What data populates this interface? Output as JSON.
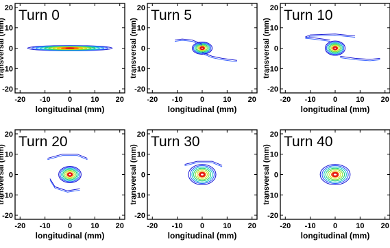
{
  "chart_data": [
    {
      "type": "contour",
      "title": "Turn 0",
      "xlabel": "longitudinal (mm)",
      "ylabel": "transversal (mm)",
      "xlim": [
        -22,
        22
      ],
      "ylim": [
        -22,
        22
      ],
      "x_ticks": [
        -20,
        -10,
        0,
        10,
        20
      ],
      "y_ticks": [
        20,
        10,
        0,
        -10,
        -20
      ],
      "x_tick_labels": [
        "-20",
        "-10",
        "0",
        "10",
        "20"
      ],
      "y_tick_labels": [
        "20",
        "10",
        "0",
        "-10",
        "-20"
      ],
      "grid": false,
      "shape": "ellipse",
      "center": [
        0,
        0
      ],
      "core_semi_axes": [
        17,
        1.3
      ],
      "levels": 10,
      "arms": []
    },
    {
      "type": "contour",
      "title": "Turn 5",
      "xlabel": "longitudinal (mm)",
      "ylabel": "transversal (mm)",
      "xlim": [
        -22,
        22
      ],
      "ylim": [
        -22,
        22
      ],
      "x_ticks": [
        -20,
        -10,
        0,
        10,
        20
      ],
      "y_ticks": [
        20,
        10,
        0,
        -10,
        -20
      ],
      "x_tick_labels": [
        "-20",
        "-10",
        "0",
        "10",
        "20"
      ],
      "y_tick_labels": [
        "20",
        "10",
        "0",
        "-10",
        "-20"
      ],
      "grid": false,
      "shape": "spiral",
      "center": [
        0,
        0
      ],
      "core_semi_axes": [
        4,
        3
      ],
      "levels": 8,
      "arms": [
        [
          [
            0,
            2
          ],
          [
            -4,
            4
          ],
          [
            -8,
            4.5
          ],
          [
            -11,
            4
          ]
        ],
        [
          [
            0,
            -2
          ],
          [
            4,
            -4
          ],
          [
            8,
            -5
          ],
          [
            14,
            -6
          ]
        ]
      ]
    },
    {
      "type": "contour",
      "title": "Turn 10",
      "xlabel": "longitudinal (mm)",
      "ylabel": "transversal (mm)",
      "xlim": [
        -22,
        22
      ],
      "ylim": [
        -22,
        22
      ],
      "x_ticks": [
        -20,
        -10,
        0,
        10,
        20
      ],
      "y_ticks": [
        20,
        10,
        0,
        -10,
        -20
      ],
      "x_tick_labels": [
        "-20",
        "-10",
        "0",
        "10",
        "20"
      ],
      "y_tick_labels": [
        "20",
        "10",
        "0",
        "-10",
        "-20"
      ],
      "grid": false,
      "shape": "spiral",
      "center": [
        0,
        0
      ],
      "core_semi_axes": [
        4,
        3.5
      ],
      "levels": 8,
      "arms": [
        [
          [
            -2,
            4
          ],
          [
            -8,
            5
          ],
          [
            -12,
            5.5
          ],
          [
            -10,
            6.5
          ],
          [
            0,
            7
          ],
          [
            8,
            6
          ]
        ],
        [
          [
            2,
            -4
          ],
          [
            8,
            -5
          ],
          [
            14,
            -5.5
          ],
          [
            18,
            -5
          ]
        ]
      ]
    },
    {
      "type": "contour",
      "title": "Turn 20",
      "xlabel": "longitudinal (mm)",
      "ylabel": "transversal (mm)",
      "xlim": [
        -22,
        22
      ],
      "ylim": [
        -22,
        22
      ],
      "x_ticks": [
        -20,
        -10,
        0,
        10,
        20
      ],
      "y_ticks": [
        20,
        10,
        0,
        -10,
        -20
      ],
      "x_tick_labels": [
        "-20",
        "-10",
        "0",
        "10",
        "20"
      ],
      "y_tick_labels": [
        "20",
        "10",
        "0",
        "-10",
        "-20"
      ],
      "grid": false,
      "shape": "core-with-rings",
      "center": [
        0,
        0
      ],
      "core_semi_axes": [
        4.5,
        4
      ],
      "levels": 8,
      "arms": [
        [
          [
            -9,
            8
          ],
          [
            -3,
            10
          ],
          [
            3,
            10
          ],
          [
            7,
            8
          ]
        ],
        [
          [
            -8,
            -2
          ],
          [
            -6,
            -6
          ],
          [
            -1,
            -8
          ],
          [
            4,
            -7
          ]
        ]
      ]
    },
    {
      "type": "contour",
      "title": "Turn 30",
      "xlabel": "longitudinal (mm)",
      "ylabel": "transversal (mm)",
      "xlim": [
        -22,
        22
      ],
      "ylim": [
        -22,
        22
      ],
      "x_ticks": [
        -20,
        -10,
        0,
        10,
        20
      ],
      "y_ticks": [
        20,
        10,
        0,
        -10,
        -20
      ],
      "x_tick_labels": [
        "-20",
        "-10",
        "0",
        "10",
        "20"
      ],
      "y_tick_labels": [
        "20",
        "10",
        "0",
        "-10",
        "-20"
      ],
      "grid": false,
      "shape": "core-with-rings",
      "center": [
        0,
        0
      ],
      "core_semi_axes": [
        5.5,
        5
      ],
      "levels": 8,
      "arms": [
        [
          [
            -7,
            5
          ],
          [
            -2,
            6.5
          ],
          [
            4,
            6.5
          ],
          [
            8,
            4.5
          ]
        ]
      ]
    },
    {
      "type": "contour",
      "title": "Turn 40",
      "xlabel": "longitudinal (mm)",
      "ylabel": "transversal (mm)",
      "xlim": [
        -22,
        22
      ],
      "ylim": [
        -22,
        22
      ],
      "x_ticks": [
        -20,
        -10,
        0,
        10,
        20
      ],
      "y_ticks": [
        20,
        10,
        0,
        -10,
        -20
      ],
      "x_tick_labels": [
        "-20",
        "-10",
        "0",
        "10",
        "20"
      ],
      "y_tick_labels": [
        "20",
        "10",
        "0",
        "-10",
        "-20"
      ],
      "grid": false,
      "shape": "core",
      "center": [
        0,
        0
      ],
      "core_semi_axes": [
        6,
        5
      ],
      "levels": 8,
      "arms": []
    }
  ],
  "colors": {
    "levels": [
      "#1f1fd6",
      "#2f5bff",
      "#1e9cf0",
      "#18c8c8",
      "#1fd07a",
      "#7fe030",
      "#d8e020",
      "#ffb000",
      "#ff5a00",
      "#e01010"
    ],
    "axis": "#000000",
    "text": "#000000"
  }
}
